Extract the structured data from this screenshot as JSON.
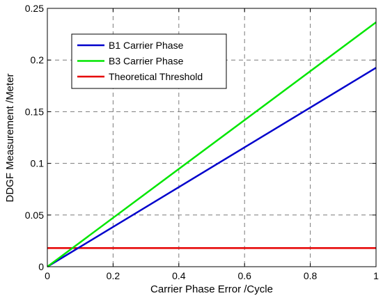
{
  "chart_data": {
    "type": "line",
    "title": "",
    "xlabel": "Carrier Phase Error /Cycle",
    "ylabel": "DDGF Measurement /Meter",
    "xlim": [
      0,
      1
    ],
    "ylim": [
      0,
      0.25
    ],
    "xticks": [
      0,
      0.2,
      0.4,
      0.6,
      0.8,
      1
    ],
    "xtick_labels": [
      "0",
      "0.2",
      "0.4",
      "0.6",
      "0.8",
      "1"
    ],
    "yticks": [
      0,
      0.05,
      0.1,
      0.15,
      0.2,
      0.25
    ],
    "ytick_labels": [
      "0",
      "0.05",
      "0.1",
      "0.15",
      "0.2",
      "0.25"
    ],
    "grid": true,
    "grid_style": "dashed",
    "legend_position": "top-left",
    "series": [
      {
        "name": "B1 Carrier Phase",
        "color": "#0000cc",
        "x": [
          0,
          1
        ],
        "y": [
          0,
          0.1925
        ]
      },
      {
        "name": "B3 Carrier Phase",
        "color": "#00e600",
        "x": [
          0,
          1
        ],
        "y": [
          0,
          0.2365
        ]
      },
      {
        "name": "Theoretical Threshold",
        "color": "#e60000",
        "x": [
          0,
          1
        ],
        "y": [
          0.018,
          0.018
        ]
      }
    ]
  }
}
